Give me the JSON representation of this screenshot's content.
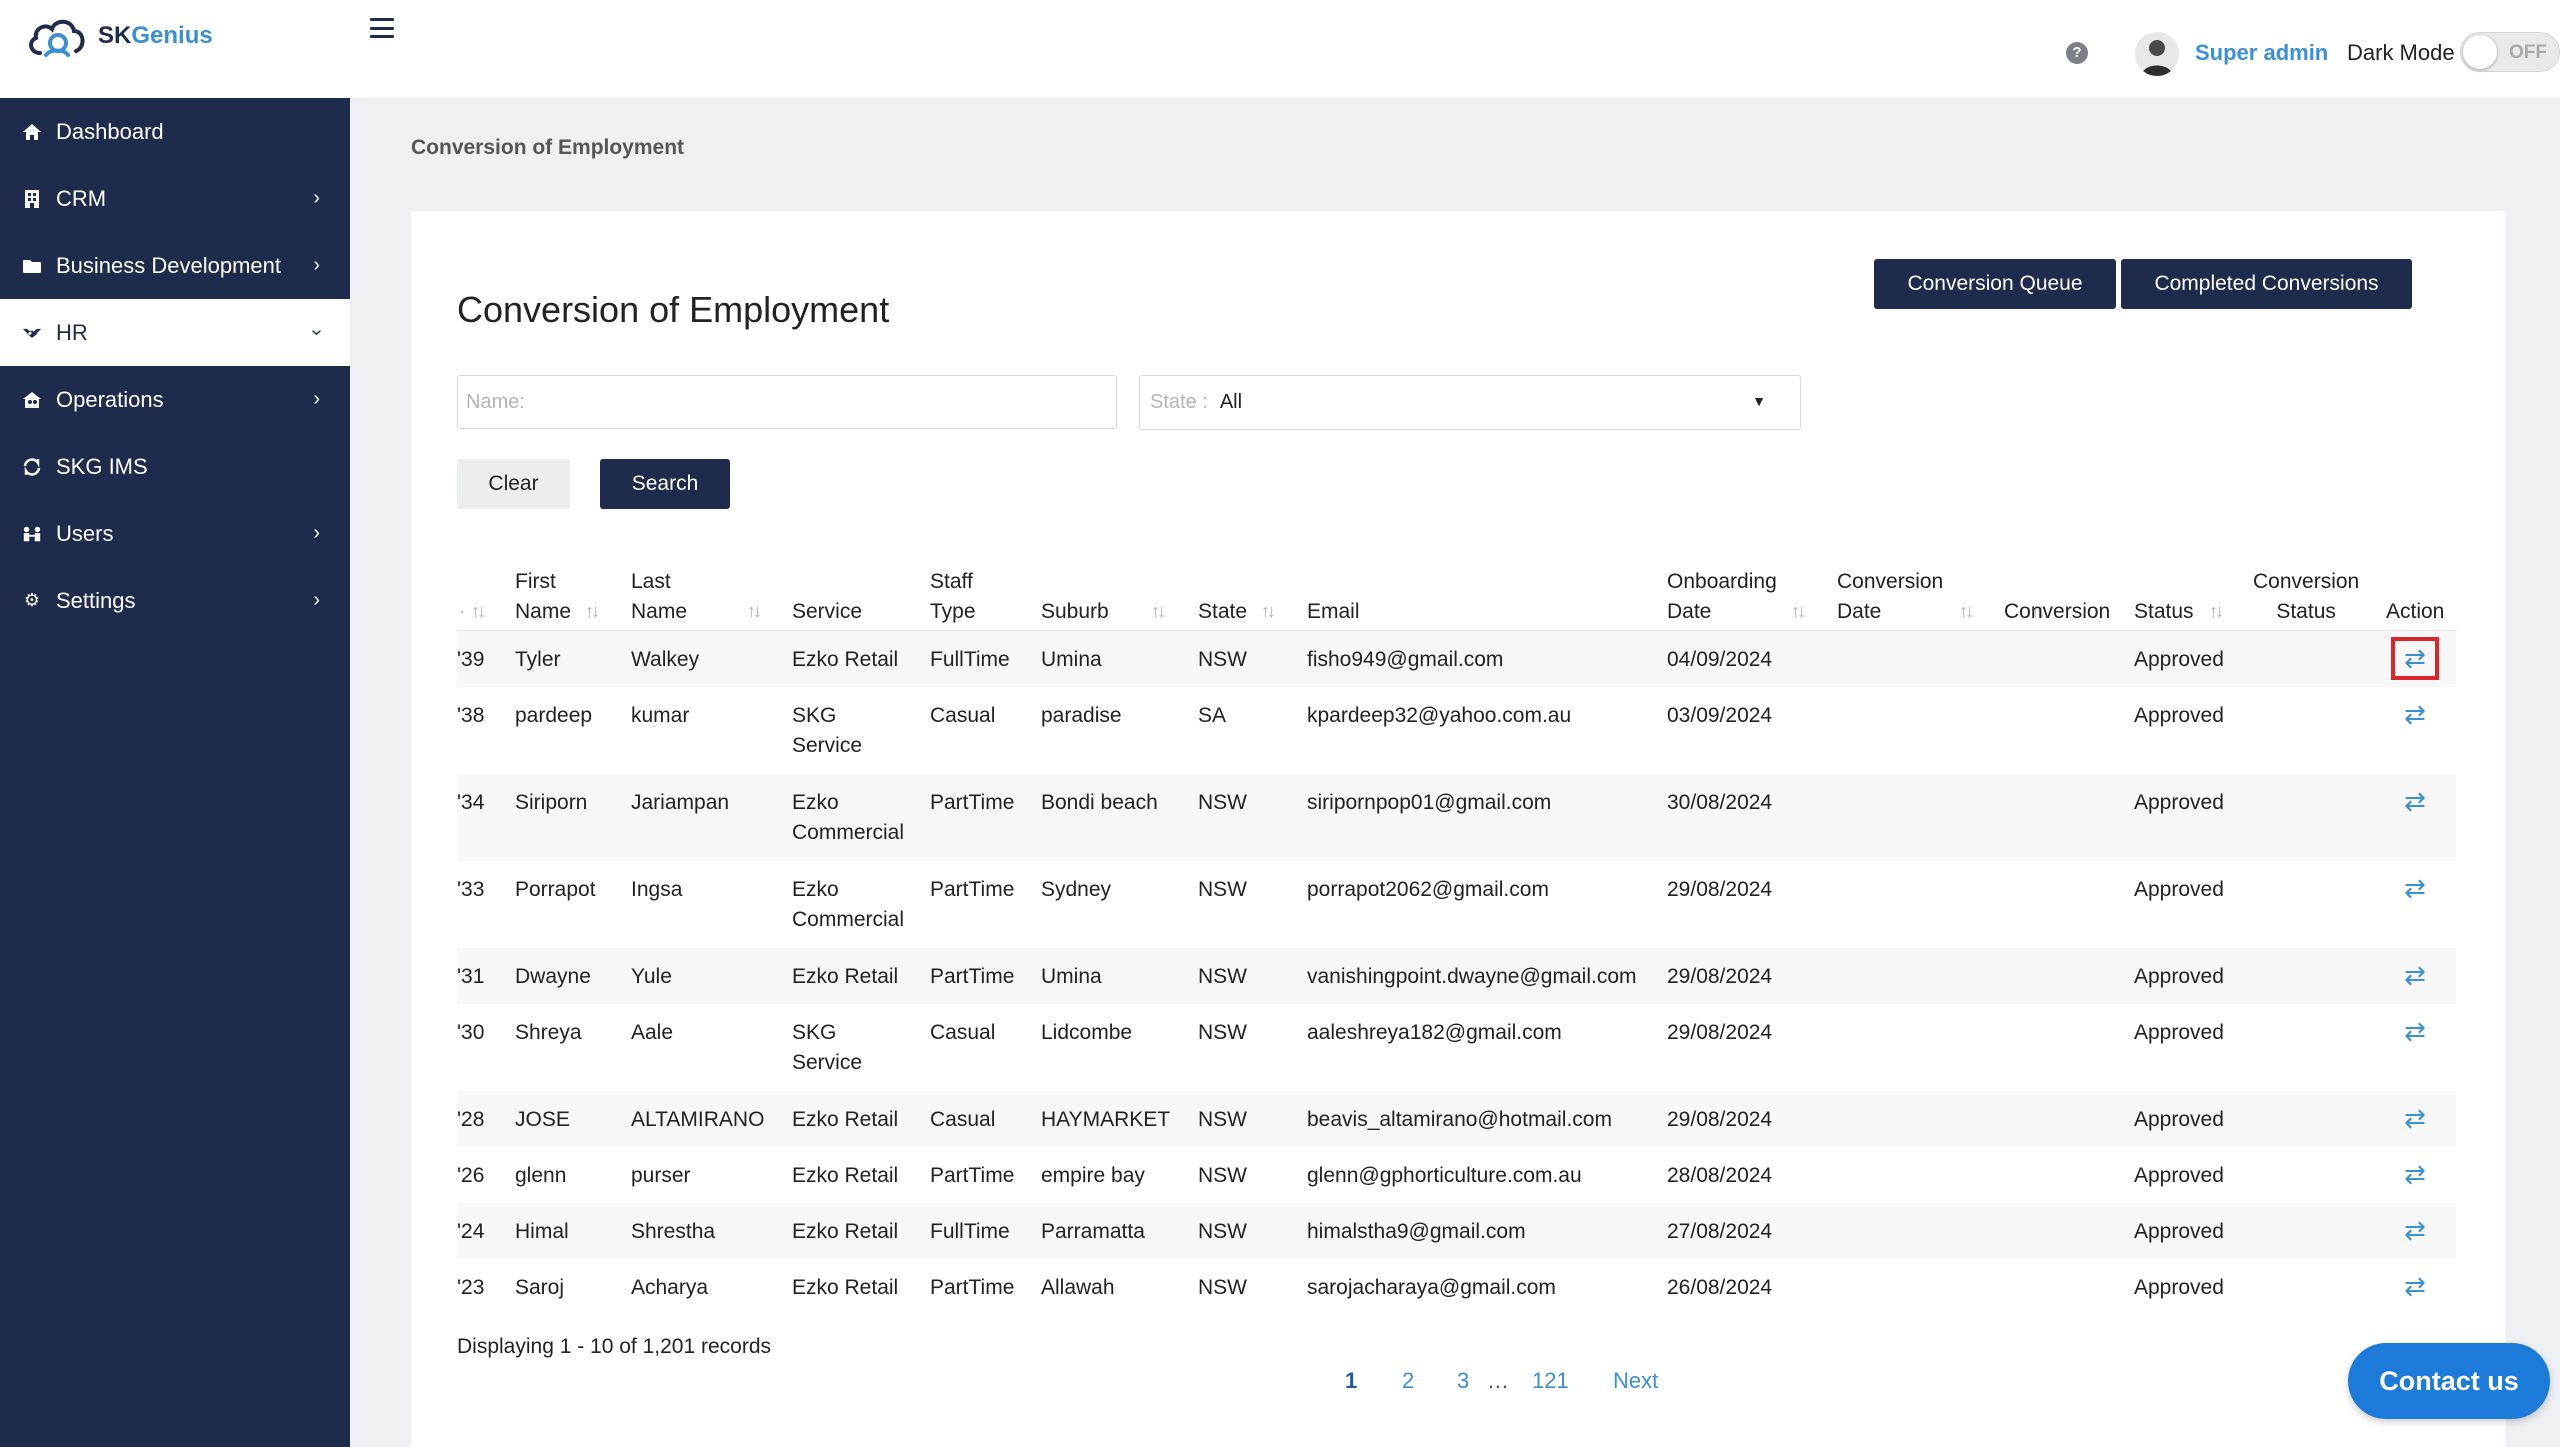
{
  "app": {
    "logo_sk": "SK",
    "logo_genius": "Genius"
  },
  "header": {
    "help_icon": "?",
    "user_name": "Super admin",
    "dark_mode_label": "Dark Mode",
    "dark_mode_state": "OFF"
  },
  "sidebar": {
    "items": [
      {
        "label": "Dashboard",
        "icon": "home-icon"
      },
      {
        "label": "CRM",
        "icon": "building-icon"
      },
      {
        "label": "Business Development",
        "icon": "folder-icon"
      },
      {
        "label": "HR",
        "icon": "handshake-icon"
      },
      {
        "label": "Operations",
        "icon": "house-people-icon"
      },
      {
        "label": "SKG IMS",
        "icon": "sync-icon"
      },
      {
        "label": "Users",
        "icon": "users-icon"
      },
      {
        "label": "Settings",
        "icon": "gear-icon"
      }
    ]
  },
  "breadcrumb": "Conversion of Employment",
  "main": {
    "title": "Conversion of Employment",
    "queue_button": "Conversion Queue",
    "completed_button": "Completed Conversions",
    "name_placeholder": "Name:",
    "state_label": "State :",
    "state_value": "All",
    "clear_button": "Clear",
    "search_button": "Search"
  },
  "table": {
    "headers": {
      "first_name": [
        "First",
        "Name"
      ],
      "last_name": [
        "Last",
        "Name"
      ],
      "service": "Service",
      "staff_type": [
        "Staff",
        "Type"
      ],
      "suburb": "Suburb",
      "state": "State",
      "email": "Email",
      "onboarding_date": [
        "Onboarding",
        "Date"
      ],
      "conversion_date": [
        "Conversion",
        "Date"
      ],
      "conversion": "Conversion",
      "status": "Status",
      "conversion_status": [
        "Conversion",
        "Status"
      ],
      "action": "Action"
    },
    "rows": [
      {
        "id": "'39",
        "first": "Tyler",
        "last": "Walkey",
        "service": [
          "Ezko Retail"
        ],
        "staff": "FullTime",
        "suburb": "Umina",
        "state": "NSW",
        "email": "fisho949@gmail.com",
        "onboarding": "04/09/2024",
        "status": "Approved"
      },
      {
        "id": "'38",
        "first": "pardeep",
        "last": "kumar",
        "service": [
          "SKG",
          "Service"
        ],
        "staff": "Casual",
        "suburb": "paradise",
        "state": "SA",
        "email": "kpardeep32@yahoo.com.au",
        "onboarding": "03/09/2024",
        "status": "Approved"
      },
      {
        "id": "'34",
        "first": "Siriporn",
        "last": "Jariampan",
        "service": [
          "Ezko",
          "Commercial"
        ],
        "staff": "PartTime",
        "suburb": "Bondi beach",
        "state": "NSW",
        "email": "siripornpop01@gmail.com",
        "onboarding": "30/08/2024",
        "status": "Approved"
      },
      {
        "id": "'33",
        "first": "Porrapot",
        "last": "Ingsa",
        "service": [
          "Ezko",
          "Commercial"
        ],
        "staff": "PartTime",
        "suburb": "Sydney",
        "state": "NSW",
        "email": "porrapot2062@gmail.com",
        "onboarding": "29/08/2024",
        "status": "Approved"
      },
      {
        "id": "'31",
        "first": "Dwayne",
        "last": "Yule",
        "service": [
          "Ezko Retail"
        ],
        "staff": "PartTime",
        "suburb": "Umina",
        "state": "NSW",
        "email": "vanishingpoint.dwayne@gmail.com",
        "onboarding": "29/08/2024",
        "status": "Approved"
      },
      {
        "id": "'30",
        "first": "Shreya",
        "last": "Aale",
        "service": [
          "SKG",
          "Service"
        ],
        "staff": "Casual",
        "suburb": "Lidcombe",
        "state": "NSW",
        "email": "aaleshreya182@gmail.com",
        "onboarding": "29/08/2024",
        "status": "Approved"
      },
      {
        "id": "'28",
        "first": "JOSE",
        "last": "ALTAMIRANO",
        "service": [
          "Ezko Retail"
        ],
        "staff": "Casual",
        "suburb": "HAYMARKET",
        "state": "NSW",
        "email": "beavis_altamirano@hotmail.com",
        "onboarding": "29/08/2024",
        "status": "Approved"
      },
      {
        "id": "'26",
        "first": "glenn",
        "last": "purser",
        "service": [
          "Ezko Retail"
        ],
        "staff": "PartTime",
        "suburb": "empire bay",
        "state": "NSW",
        "email": "glenn@gphorticulture.com.au",
        "onboarding": "28/08/2024",
        "status": "Approved"
      },
      {
        "id": "'24",
        "first": "Himal",
        "last": "Shrestha",
        "service": [
          "Ezko Retail"
        ],
        "staff": "FullTime",
        "suburb": "Parramatta",
        "state": "NSW",
        "email": "himalstha9@gmail.com",
        "onboarding": "27/08/2024",
        "status": "Approved"
      },
      {
        "id": "'23",
        "first": "Saroj",
        "last": "Acharya",
        "service": [
          "Ezko Retail"
        ],
        "staff": "PartTime",
        "suburb": "Allawah",
        "state": "NSW",
        "email": "sarojacharaya@gmail.com",
        "onboarding": "26/08/2024",
        "status": "Approved"
      }
    ]
  },
  "footer": {
    "records": "Displaying 1 - 10 of 1,201 records",
    "pages": [
      "1",
      "2",
      "3",
      "…",
      "121",
      "Next"
    ]
  },
  "contact_button": "Contact us",
  "colors": {
    "sidebar": "#1f2b4d",
    "accent": "#3b8fd4",
    "highlight": "#d8262a",
    "contact": "#1c7bd8"
  }
}
